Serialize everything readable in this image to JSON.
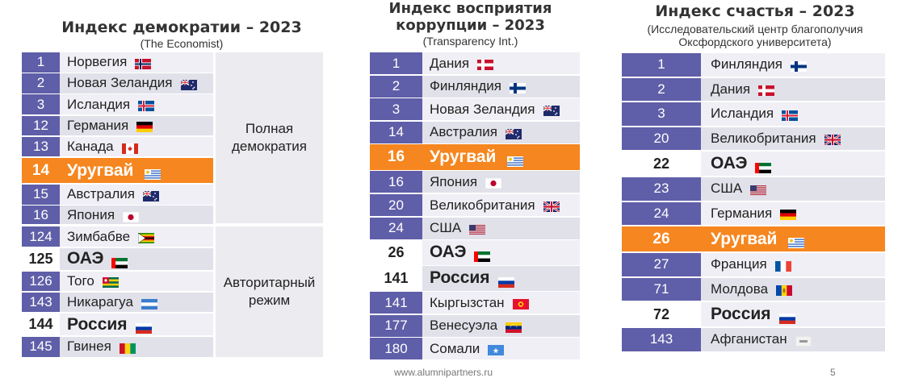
{
  "panels": [
    {
      "title": "Индекс демократии – 2023",
      "subtitle": "(The Economist)",
      "categories": [
        "Полная демократия",
        "Авторитарный режим"
      ],
      "rows": [
        {
          "rank": "1",
          "country": "Норвегия",
          "flag": "norway-flag-icon"
        },
        {
          "rank": "2",
          "country": "Новая Зеландия",
          "flag": "new-zealand-flag-icon"
        },
        {
          "rank": "3",
          "country": "Исландия",
          "flag": "iceland-flag-icon"
        },
        {
          "rank": "12",
          "country": "Германия",
          "flag": "germany-flag-icon"
        },
        {
          "rank": "13",
          "country": "Канада",
          "flag": "canada-flag-icon"
        },
        {
          "rank": "14",
          "country": "Уругвай",
          "flag": "uruguay-flag-icon",
          "highlight": true
        },
        {
          "rank": "15",
          "country": "Австралия",
          "flag": "australia-flag-icon"
        },
        {
          "rank": "16",
          "country": "Япония",
          "flag": "japan-flag-icon"
        },
        {
          "rank": "124",
          "country": "Зимбабве",
          "flag": "zimbabwe-flag-icon"
        },
        {
          "rank": "125",
          "country": "ОАЭ",
          "flag": "uae-flag-icon",
          "bold": true
        },
        {
          "rank": "126",
          "country": "Того",
          "flag": "togo-flag-icon"
        },
        {
          "rank": "143",
          "country": "Никарагуа",
          "flag": "nicaragua-flag-icon"
        },
        {
          "rank": "144",
          "country": "Россия",
          "flag": "russia-flag-icon",
          "bold": true
        },
        {
          "rank": "145",
          "country": "Гвинея",
          "flag": "guinea-flag-icon"
        }
      ]
    },
    {
      "title": "Индекс восприятия коррупции – 2023",
      "subtitle": "(Transparency Int.)",
      "rows": [
        {
          "rank": "1",
          "country": "Дания",
          "flag": "denmark-flag-icon"
        },
        {
          "rank": "2",
          "country": "Финляндия",
          "flag": "finland-flag-icon"
        },
        {
          "rank": "3",
          "country": "Новая Зеландия",
          "flag": "new-zealand-flag-icon"
        },
        {
          "rank": "14",
          "country": "Австралия",
          "flag": "australia-flag-icon"
        },
        {
          "rank": "16",
          "country": "Уругвай",
          "flag": "uruguay-flag-icon",
          "highlight": true
        },
        {
          "rank": "16",
          "country": "Япония",
          "flag": "japan-flag-icon"
        },
        {
          "rank": "20",
          "country": "Великобритания",
          "flag": "uk-flag-icon"
        },
        {
          "rank": "24",
          "country": "США",
          "flag": "usa-flag-icon"
        },
        {
          "rank": "26",
          "country": "ОАЭ",
          "flag": "uae-flag-icon",
          "bold": true
        },
        {
          "rank": "141",
          "country": "Россия",
          "flag": "russia-flag-icon",
          "bold": true
        },
        {
          "rank": "141",
          "country": "Кыргызстан",
          "flag": "kyrgyzstan-flag-icon"
        },
        {
          "rank": "177",
          "country": "Венесуэла",
          "flag": "venezuela-flag-icon"
        },
        {
          "rank": "180",
          "country": "Сомали",
          "flag": "somalia-flag-icon"
        }
      ]
    },
    {
      "title": "Индекс счастья – 2023",
      "subtitle": "(Исследовательский центр благополучия Оксфордского университета)",
      "rows": [
        {
          "rank": "1",
          "country": "Финляндия",
          "flag": "finland-flag-icon"
        },
        {
          "rank": "2",
          "country": "Дания",
          "flag": "denmark-flag-icon"
        },
        {
          "rank": "3",
          "country": "Исландия",
          "flag": "iceland-flag-icon"
        },
        {
          "rank": "20",
          "country": "Великобритания",
          "flag": "uk-flag-icon"
        },
        {
          "rank": "22",
          "country": "ОАЭ",
          "flag": "uae-flag-icon",
          "bold": true
        },
        {
          "rank": "23",
          "country": "США",
          "flag": "usa-flag-icon"
        },
        {
          "rank": "24",
          "country": "Германия",
          "flag": "germany-flag-icon"
        },
        {
          "rank": "26",
          "country": "Уругвай",
          "flag": "uruguay-flag-icon",
          "highlight": true
        },
        {
          "rank": "27",
          "country": "Франция",
          "flag": "france-flag-icon"
        },
        {
          "rank": "71",
          "country": "Молдова",
          "flag": "moldova-flag-icon"
        },
        {
          "rank": "72",
          "country": "Россия",
          "flag": "russia-flag-icon",
          "bold": true
        },
        {
          "rank": "143",
          "country": "Афганистан",
          "flag": "afghanistan-flag-icon"
        }
      ]
    }
  ],
  "footer": {
    "url": "www.alumnipartners.ru",
    "page": "5"
  },
  "colors": {
    "rank_bg": "#5f5ea8",
    "highlight": "#f6861f",
    "row_light": "#efeff5",
    "row_dark": "#e1e1ea"
  }
}
